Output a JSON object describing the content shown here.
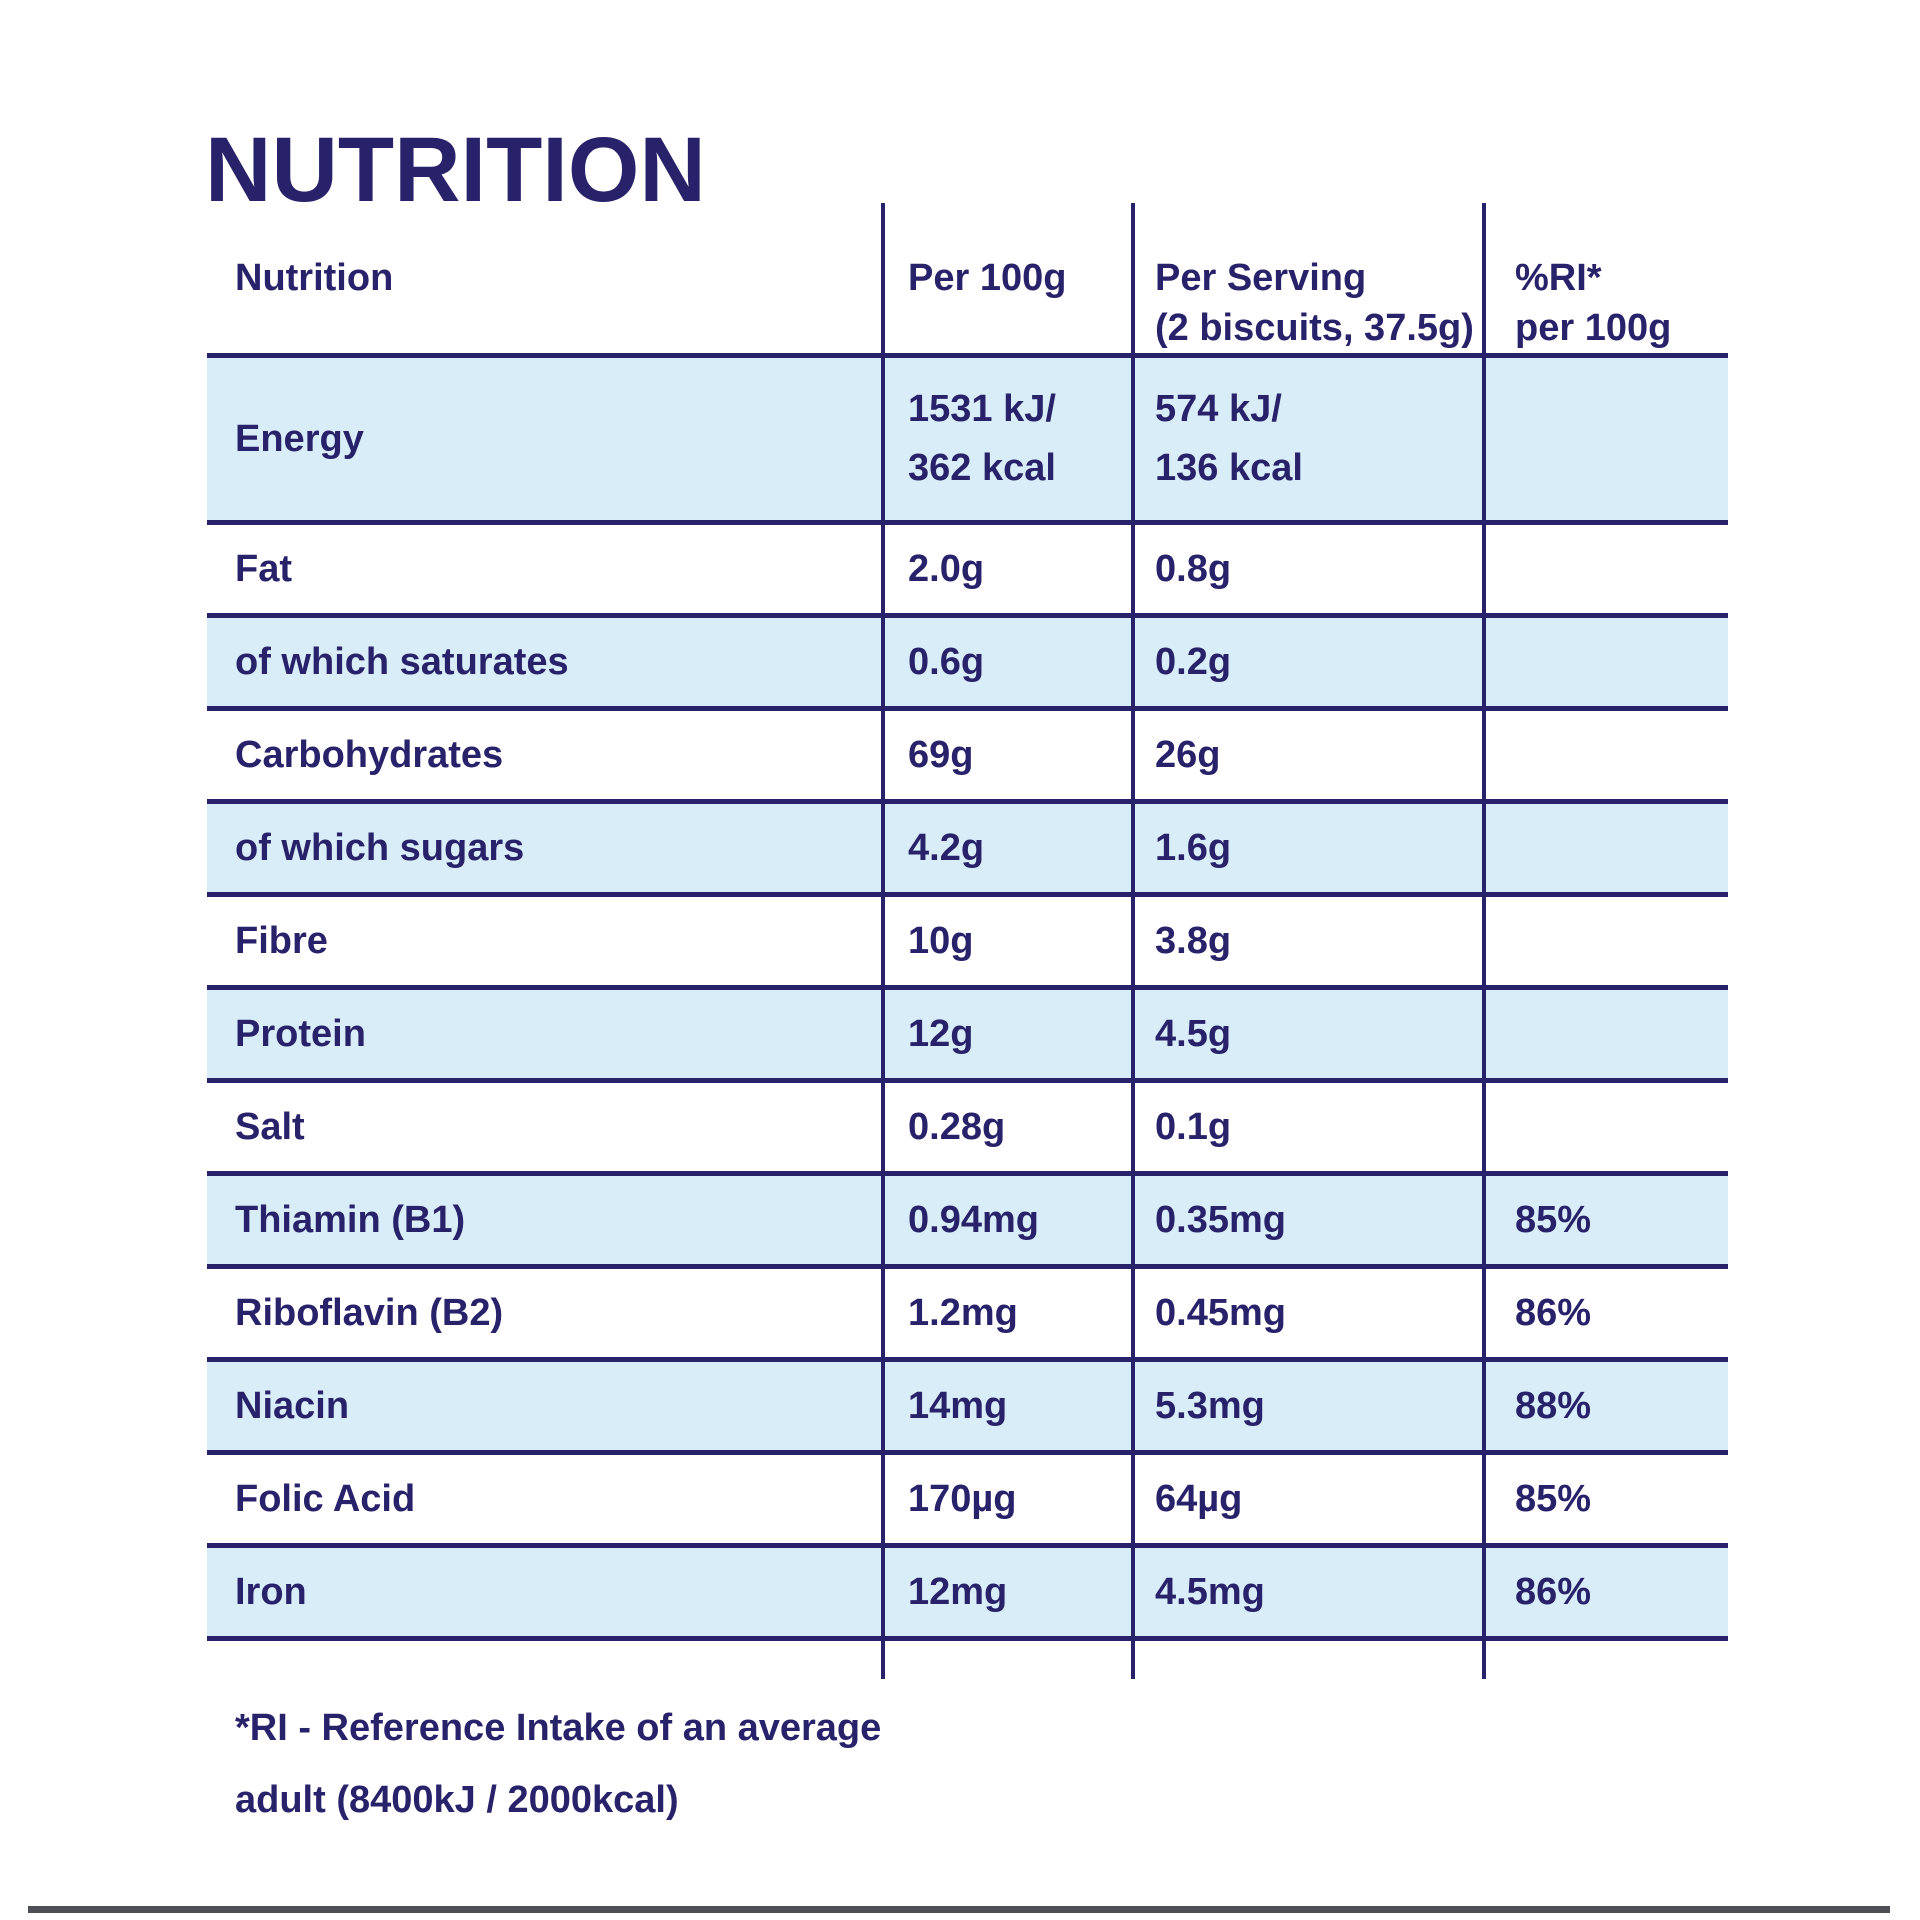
{
  "title": "NUTRITION",
  "table": {
    "header": [
      {
        "line1": "Nutrition",
        "line2": ""
      },
      {
        "line1": "Per 100g",
        "line2": ""
      },
      {
        "line1": "Per Serving",
        "line2": "(2 biscuits, 37.5g)"
      },
      {
        "line1": "%RI*",
        "line2": "per 100g"
      }
    ],
    "rows": [
      {
        "label": "Energy",
        "per_100g": "1531 kJ/\n362 kcal",
        "per_serving": "574 kJ/\n136 kcal",
        "ri_per_100g": "",
        "shaded": true
      },
      {
        "label": "Fat",
        "per_100g": "2.0g",
        "per_serving": "0.8g",
        "ri_per_100g": "",
        "shaded": false
      },
      {
        "label": "of which saturates",
        "per_100g": "0.6g",
        "per_serving": "0.2g",
        "ri_per_100g": "",
        "shaded": true
      },
      {
        "label": "Carbohydrates",
        "per_100g": "69g",
        "per_serving": "26g",
        "ri_per_100g": "",
        "shaded": false
      },
      {
        "label": "of which sugars",
        "per_100g": "4.2g",
        "per_serving": "1.6g",
        "ri_per_100g": "",
        "shaded": true
      },
      {
        "label": "Fibre",
        "per_100g": "10g",
        "per_serving": "3.8g",
        "ri_per_100g": "",
        "shaded": false
      },
      {
        "label": "Protein",
        "per_100g": "12g",
        "per_serving": "4.5g",
        "ri_per_100g": "",
        "shaded": true
      },
      {
        "label": "Salt",
        "per_100g": "0.28g",
        "per_serving": "0.1g",
        "ri_per_100g": "",
        "shaded": false
      },
      {
        "label": "Thiamin (B1)",
        "per_100g": "0.94mg",
        "per_serving": "0.35mg",
        "ri_per_100g": "85%",
        "shaded": true
      },
      {
        "label": "Riboflavin (B2)",
        "per_100g": "1.2mg",
        "per_serving": "0.45mg",
        "ri_per_100g": "86%",
        "shaded": false
      },
      {
        "label": "Niacin",
        "per_100g": "14mg",
        "per_serving": "5.3mg",
        "ri_per_100g": "88%",
        "shaded": true
      },
      {
        "label": "Folic Acid",
        "per_100g": "170µg",
        "per_serving": "64µg",
        "ri_per_100g": "85%",
        "shaded": false
      },
      {
        "label": "Iron",
        "per_100g": "12mg",
        "per_serving": "4.5mg",
        "ri_per_100g": "86%",
        "shaded": true
      }
    ]
  },
  "footnote": {
    "line1": "*RI - Reference Intake of an average",
    "line2": "adult (8400kJ / 2000kcal)"
  },
  "colors": {
    "text_navy": "#28226a",
    "row_highlight": "#d9edf8",
    "bottom_bar": "#4d4f54"
  }
}
